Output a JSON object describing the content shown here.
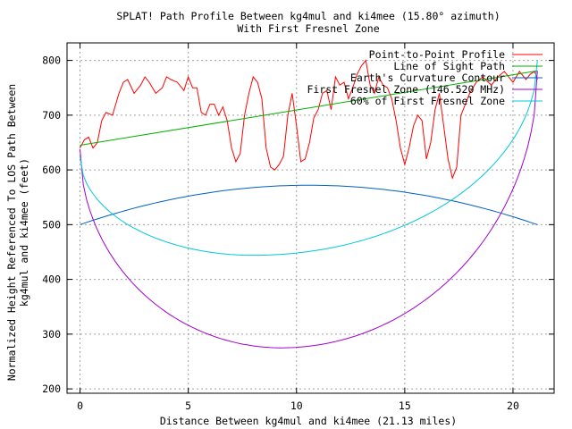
{
  "chart_data": {
    "type": "line",
    "title": "SPLAT! Path Profile Between kg4mul and ki4mee (15.80° azimuth)",
    "subtitle": "With First Fresnel Zone",
    "xlabel": "Distance Between kg4mul and ki4mee (21.13 miles)",
    "ylabel_line1": "Normalized Height Referenced To LOS Path Between",
    "ylabel_line2": "kg4mul and ki4mee (feet)",
    "xlim": [
      -0.6,
      21.9
    ],
    "ylim": [
      192,
      832
    ],
    "xticks": [
      0,
      5,
      10,
      15,
      20
    ],
    "yticks": [
      200,
      300,
      400,
      500,
      600,
      700,
      800
    ],
    "grid": true,
    "legend_position": "top-right",
    "series": [
      {
        "name": "Point-to-Point Profile",
        "color": "#ff0000",
        "x": [
          0,
          0.2,
          0.4,
          0.6,
          0.8,
          1.0,
          1.2,
          1.5,
          1.8,
          2.0,
          2.2,
          2.5,
          2.8,
          3.0,
          3.2,
          3.5,
          3.8,
          4.0,
          4.2,
          4.5,
          4.8,
          5.0,
          5.2,
          5.4,
          5.6,
          5.8,
          6.0,
          6.2,
          6.4,
          6.6,
          6.8,
          7.0,
          7.2,
          7.4,
          7.6,
          7.8,
          8.0,
          8.2,
          8.4,
          8.6,
          8.8,
          9.0,
          9.2,
          9.4,
          9.6,
          9.8,
          10.0,
          10.2,
          10.4,
          10.6,
          10.8,
          11.0,
          11.2,
          11.4,
          11.6,
          11.8,
          12.0,
          12.2,
          12.4,
          12.6,
          12.8,
          13.0,
          13.2,
          13.4,
          13.6,
          13.8,
          14.0,
          14.2,
          14.4,
          14.6,
          14.8,
          15.0,
          15.2,
          15.4,
          15.6,
          15.8,
          16.0,
          16.2,
          16.4,
          16.6,
          16.8,
          17.0,
          17.2,
          17.4,
          17.6,
          17.8,
          18.0,
          18.3,
          18.6,
          19.0,
          19.3,
          19.6,
          20.0,
          20.3,
          20.6,
          20.8,
          21.0,
          21.13
        ],
        "y": [
          640,
          655,
          660,
          640,
          650,
          690,
          705,
          700,
          740,
          760,
          765,
          740,
          755,
          770,
          760,
          740,
          750,
          770,
          765,
          760,
          745,
          770,
          750,
          750,
          705,
          700,
          720,
          720,
          700,
          715,
          690,
          640,
          615,
          630,
          700,
          740,
          770,
          760,
          730,
          640,
          605,
          600,
          610,
          625,
          700,
          740,
          680,
          615,
          620,
          650,
          695,
          710,
          740,
          745,
          710,
          770,
          755,
          760,
          730,
          750,
          775,
          790,
          800,
          755,
          740,
          770,
          755,
          750,
          730,
          690,
          640,
          610,
          640,
          680,
          700,
          690,
          620,
          650,
          710,
          740,
          680,
          620,
          585,
          605,
          700,
          720,
          740,
          760,
          770,
          755,
          770,
          780,
          760,
          780,
          765,
          775,
          780,
          765
        ]
      },
      {
        "name": "Line of Sight Path",
        "color": "#00b000",
        "x": [
          0,
          21.13
        ],
        "y": [
          645,
          781
        ]
      },
      {
        "name": "Earth's Curvature Contour",
        "color": "#0060c0",
        "x": [
          0,
          10.56,
          21.13
        ],
        "y": [
          500,
          572,
          500
        ]
      },
      {
        "name": "First Fresnel Zone (146.520 MHz)",
        "color": "#a000d0",
        "x": [
          0,
          9.3,
          21.13
        ],
        "y": [
          638,
          275,
          781
        ]
      },
      {
        "name": "60% of First Fresnel Zone",
        "color": "#00c8d8",
        "x": [
          0,
          8.0,
          21.13
        ],
        "y": [
          625,
          444,
          800
        ]
      }
    ]
  }
}
